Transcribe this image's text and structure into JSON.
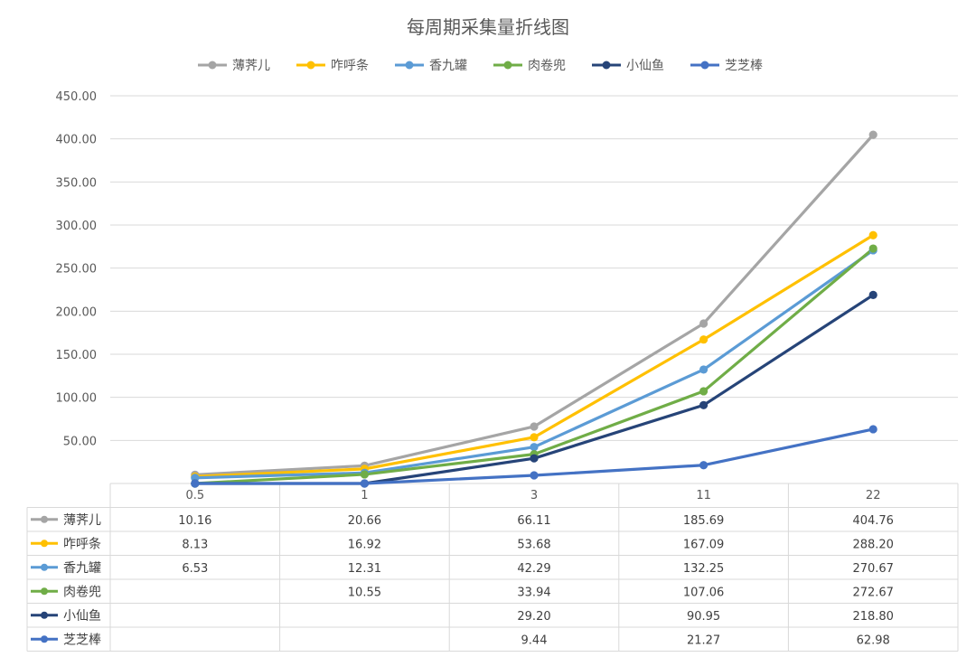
{
  "chart_data": {
    "type": "line",
    "title": "每周期采集量折线图",
    "x": [
      "0.5",
      "1",
      "3",
      "11",
      "22"
    ],
    "ylim": [
      0,
      450
    ],
    "yticks": [
      "50.00",
      "100.00",
      "150.00",
      "200.00",
      "250.00",
      "300.00",
      "350.00",
      "400.00",
      "450.00"
    ],
    "grid": true,
    "legend_position": "top",
    "data_table": true,
    "series": [
      {
        "name": "薄荠儿",
        "color": "#A5A5A5",
        "values": [
          10.16,
          20.66,
          66.11,
          185.69,
          404.76
        ],
        "labels": [
          "10.16",
          "20.66",
          "66.11",
          "185.69",
          "404.76"
        ]
      },
      {
        "name": "咋呼条",
        "color": "#FFC000",
        "values": [
          8.13,
          16.92,
          53.68,
          167.09,
          288.2
        ],
        "labels": [
          "8.13",
          "16.92",
          "53.68",
          "167.09",
          "288.20"
        ]
      },
      {
        "name": "香九罐",
        "color": "#5B9BD5",
        "values": [
          6.53,
          12.31,
          42.29,
          132.25,
          270.67
        ],
        "labels": [
          "6.53",
          "12.31",
          "42.29",
          "132.25",
          "270.67"
        ]
      },
      {
        "name": "肉卷兜",
        "color": "#70AD47",
        "values": [
          0,
          10.55,
          33.94,
          107.06,
          272.67
        ],
        "labels": [
          "",
          "10.55",
          "33.94",
          "107.06",
          "272.67"
        ]
      },
      {
        "name": "小仙鱼",
        "color": "#264478",
        "values": [
          0,
          0,
          29.2,
          90.95,
          218.8
        ],
        "labels": [
          "",
          "",
          "29.20",
          "90.95",
          "218.80"
        ]
      },
      {
        "name": "芝芝棒",
        "color": "#4472C4",
        "values": [
          0,
          0,
          9.44,
          21.27,
          62.98
        ],
        "labels": [
          "",
          "",
          "9.44",
          "21.27",
          "62.98"
        ]
      }
    ]
  }
}
